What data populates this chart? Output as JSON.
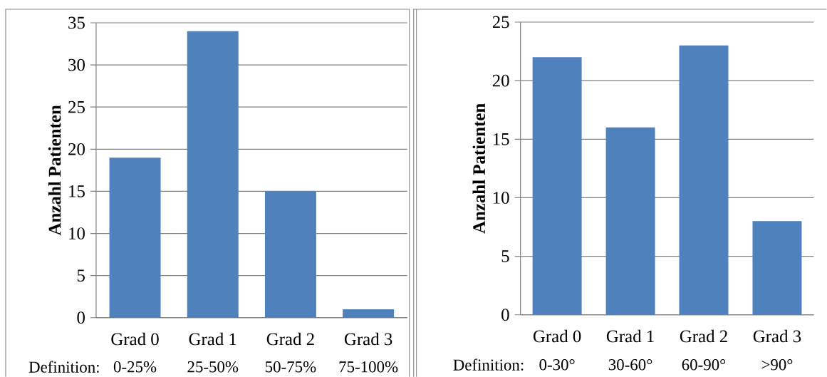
{
  "chart_data": [
    {
      "type": "bar",
      "categories": [
        "Grad 0",
        "Grad 1",
        "Grad 2",
        "Grad 3"
      ],
      "values": [
        19,
        34,
        15,
        1
      ],
      "color": "#4f81bd",
      "ylabel": "Anzahl Patienten",
      "ylim": [
        0,
        35
      ],
      "yticks": [
        0,
        5,
        10,
        15,
        20,
        25,
        30,
        35
      ],
      "grid": "y",
      "annotations": [
        "Definition:",
        "0-25%",
        "25-50%",
        "50-75%",
        "75-100%"
      ]
    },
    {
      "type": "bar",
      "categories": [
        "Grad 0",
        "Grad 1",
        "Grad 2",
        "Grad 3"
      ],
      "values": [
        22,
        16,
        23,
        8
      ],
      "color": "#4f81bd",
      "ylabel": "Anzahl Patienten",
      "ylim": [
        0,
        25
      ],
      "yticks": [
        0,
        5,
        10,
        15,
        20,
        25
      ],
      "grid": "y",
      "annotations": [
        "Definition:",
        "0-30°",
        "30-60°",
        "60-90°",
        ">90°"
      ]
    }
  ]
}
